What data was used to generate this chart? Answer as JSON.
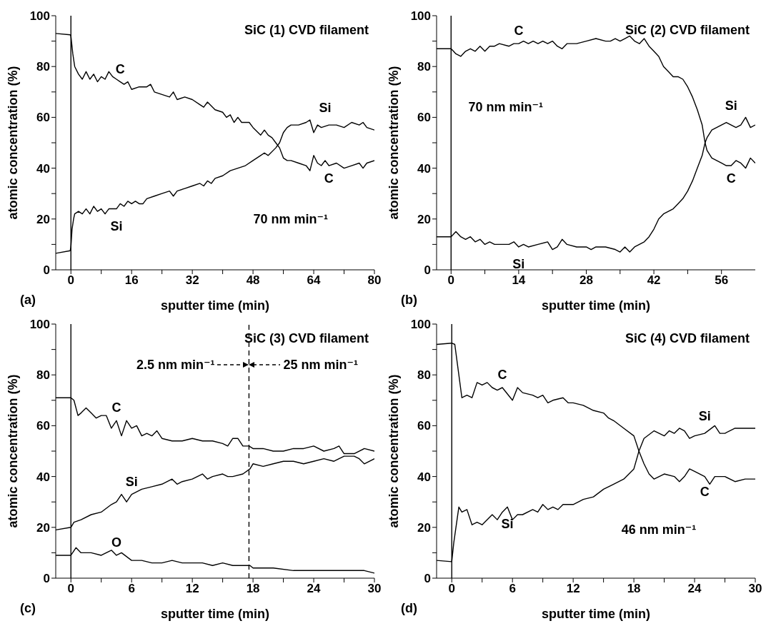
{
  "chart_data": [
    {
      "type": "line",
      "title": "SiC (1) CVD filament",
      "xlabel": "sputter time (min)",
      "ylabel": "atomic concentration (%)",
      "xlim": [
        -4,
        80
      ],
      "xticks": [
        0,
        {
          "value": 8,
          "label": null
        },
        16,
        {
          "value": 24,
          "label": null
        },
        32,
        {
          "value": 40,
          "label": null
        },
        48,
        {
          "value": 56,
          "label": null
        },
        64,
        {
          "value": 72,
          "label": null
        },
        80
      ],
      "ylim": [
        0,
        100
      ],
      "yticks": [
        0,
        {
          "value": 10,
          "label": null
        },
        20,
        {
          "value": 30,
          "label": null
        },
        40,
        {
          "value": 50,
          "label": null
        },
        60,
        {
          "value": 70,
          "label": null
        },
        80,
        {
          "value": 90,
          "label": null
        },
        100
      ],
      "marker": "none",
      "line_style": "solid",
      "ref_lines": [
        {
          "axis": "x",
          "value": 0,
          "color": "#000000",
          "line_style": "solid"
        }
      ],
      "annotations": [
        "(a)",
        "70 nm min⁻¹",
        {
          "text": "Si",
          "x": 67,
          "y": 57
        },
        {
          "text": "C",
          "x": 68,
          "y": 41
        }
      ],
      "series": [
        {
          "name": "C",
          "color": "#000000",
          "x": [
            -4,
            -0.2,
            0,
            0.5,
            1,
            2,
            3,
            4,
            5,
            6,
            7,
            8,
            9,
            10,
            11,
            12,
            13,
            14,
            15,
            16,
            18,
            20,
            21,
            22,
            24,
            26,
            27,
            28,
            30,
            32,
            34,
            35,
            36,
            38,
            40,
            41,
            42,
            43,
            44,
            45,
            47,
            48,
            50,
            51,
            52,
            53,
            54,
            55,
            56,
            57,
            58,
            60,
            62,
            63,
            64,
            65,
            66,
            67,
            68,
            70,
            72,
            74,
            76,
            77,
            78,
            80
          ],
          "values": [
            93,
            92.5,
            92,
            85,
            80,
            77,
            75,
            78,
            75,
            77,
            74,
            76,
            75,
            78,
            76,
            75,
            74,
            73,
            74,
            71,
            72,
            72,
            73,
            70,
            69,
            68,
            70,
            67,
            68,
            67,
            65,
            64,
            66,
            63,
            62,
            60,
            61,
            58,
            60,
            58,
            58,
            56,
            53,
            55,
            53,
            52,
            50,
            48,
            44,
            43,
            43,
            42,
            41,
            39,
            45,
            42,
            41,
            43,
            41,
            42,
            40,
            41,
            42,
            40,
            42,
            43
          ]
        },
        {
          "name": "Si",
          "color": "#000000",
          "x": [
            -4,
            -0.2,
            0,
            0.3,
            0.7,
            1,
            2,
            3,
            4,
            5,
            6,
            7,
            8,
            9,
            10,
            12,
            13,
            14,
            15,
            16,
            17,
            18,
            19,
            20,
            22,
            24,
            26,
            27,
            28,
            30,
            32,
            34,
            35,
            36,
            37,
            38,
            40,
            42,
            44,
            46,
            48,
            50,
            51,
            52,
            54,
            55,
            56,
            57,
            58,
            60,
            62,
            63,
            64,
            65,
            66,
            68,
            70,
            72,
            74,
            76,
            77,
            78,
            80
          ],
          "values": [
            6.5,
            7.5,
            9,
            16,
            20,
            22,
            23,
            22,
            24,
            22,
            25,
            23,
            24,
            22,
            24,
            24,
            26,
            25,
            27,
            26,
            27,
            26,
            26,
            28,
            29,
            30,
            31,
            29,
            31,
            32,
            33,
            34,
            33,
            35,
            34,
            36,
            37,
            39,
            40,
            41,
            43,
            45,
            46,
            45,
            48,
            50,
            54,
            56,
            57,
            57,
            58,
            59,
            54,
            57,
            56,
            57,
            57,
            56,
            58,
            57,
            58,
            56,
            55
          ]
        }
      ]
    },
    {
      "type": "line",
      "title": "SiC (2) CVD filament",
      "xlabel": "sputter time (min)",
      "ylabel": "atomic concentration (%)",
      "xlim": [
        -3,
        63
      ],
      "xticks": [
        0,
        {
          "value": 7,
          "label": null
        },
        14,
        {
          "value": 21,
          "label": null
        },
        28,
        {
          "value": 35,
          "label": null
        },
        42,
        {
          "value": 49,
          "label": null
        },
        56
      ],
      "ylim": [
        0,
        100
      ],
      "yticks": [
        0,
        {
          "value": 10,
          "label": null
        },
        20,
        {
          "value": 30,
          "label": null
        },
        40,
        {
          "value": 50,
          "label": null
        },
        60,
        {
          "value": 70,
          "label": null
        },
        80,
        {
          "value": 90,
          "label": null
        },
        100
      ],
      "marker": "none",
      "line_style": "solid",
      "ref_lines": [
        {
          "axis": "x",
          "value": 0,
          "color": "#000000",
          "line_style": "solid"
        }
      ],
      "annotations": [
        "(b)",
        "70 nm min⁻¹",
        {
          "text": "Si",
          "x": 58,
          "y": 58
        },
        {
          "text": "C",
          "x": 58,
          "y": 41
        }
      ],
      "series": [
        {
          "name": "C",
          "color": "#000000",
          "x": [
            -3,
            0,
            0.5,
            1,
            2,
            3,
            4,
            5,
            6,
            7,
            8,
            9,
            10,
            12,
            13,
            14,
            15,
            16,
            17,
            18,
            19,
            20,
            21,
            22,
            23,
            24,
            26,
            28,
            30,
            32,
            33,
            34,
            35,
            36,
            37,
            38,
            39,
            40,
            41,
            42,
            43,
            44,
            45,
            46,
            47,
            48,
            49,
            50,
            51,
            52,
            52.6,
            53,
            54,
            55,
            56,
            57,
            58,
            59,
            60,
            61,
            62,
            63
          ],
          "values": [
            87,
            87,
            86,
            85,
            84,
            86,
            87,
            86,
            88,
            86,
            88,
            88,
            89,
            88,
            89,
            89,
            90,
            89,
            90,
            89,
            90,
            89,
            90,
            88,
            87,
            89,
            89,
            90,
            91,
            90,
            90,
            91,
            90,
            91,
            92,
            90,
            89,
            91,
            88,
            86,
            84,
            80,
            78,
            76,
            76,
            75,
            72,
            68,
            63,
            57,
            50,
            47,
            44,
            43,
            42,
            41,
            41,
            43,
            42,
            40,
            44,
            42
          ]
        },
        {
          "name": "Si",
          "color": "#000000",
          "x": [
            -3,
            0,
            1,
            2,
            3,
            4,
            5,
            6,
            7,
            8,
            9,
            10,
            12,
            13,
            14,
            15,
            16,
            18,
            20,
            21,
            22,
            23,
            24,
            26,
            28,
            29,
            30,
            32,
            34,
            35,
            36,
            37,
            38,
            39,
            40,
            41,
            42,
            43,
            44,
            45,
            46,
            47,
            48,
            49,
            50,
            51,
            52,
            52.6,
            53,
            54,
            55,
            56,
            57,
            58,
            59,
            60,
            61,
            62,
            63
          ],
          "values": [
            13,
            13,
            15,
            13,
            12,
            13,
            11,
            12,
            10,
            11,
            10,
            10,
            10,
            11,
            9,
            10,
            9,
            10,
            11,
            8,
            9,
            12,
            10,
            9,
            9,
            8,
            9,
            9,
            8,
            7,
            9,
            7,
            9,
            10,
            11,
            13,
            16,
            20,
            22,
            23,
            24,
            26,
            28,
            31,
            35,
            40,
            45,
            50,
            52,
            55,
            56,
            57,
            58,
            57,
            56,
            57,
            60,
            56,
            57
          ]
        }
      ]
    },
    {
      "type": "line",
      "title": "SiC (3) CVD filament",
      "xlabel": "sputter time  (min)",
      "ylabel": "atomic concentration (%)",
      "xlim": [
        -1.5,
        30
      ],
      "xticks": [
        0,
        {
          "value": 3,
          "label": null
        },
        6,
        {
          "value": 9,
          "label": null
        },
        12,
        {
          "value": 15,
          "label": null
        },
        18,
        {
          "value": 21,
          "label": null
        },
        24,
        {
          "value": 27,
          "label": null
        },
        30
      ],
      "ylim": [
        0,
        100
      ],
      "yticks": [
        0,
        {
          "value": 10,
          "label": null
        },
        20,
        {
          "value": 30,
          "label": null
        },
        40,
        {
          "value": 50,
          "label": null
        },
        60,
        {
          "value": 70,
          "label": null
        },
        80,
        {
          "value": 90,
          "label": null
        },
        100
      ],
      "marker": "none",
      "line_style": "solid",
      "ref_lines": [
        {
          "axis": "x",
          "value": 0,
          "color": "#000000",
          "line_style": "solid"
        },
        {
          "axis": "x",
          "value": 17.6,
          "color": "#000000",
          "line_style": "dashed"
        }
      ],
      "annotations": [
        "(c)",
        "2.5 nm min⁻¹",
        "25 nm min⁻¹"
      ],
      "series": [
        {
          "name": "C",
          "color": "#000000",
          "x": [
            -1.5,
            0,
            0.3,
            0.7,
            1,
            1.5,
            2,
            2.5,
            3,
            3.5,
            4,
            4.5,
            5,
            5.5,
            6,
            6.5,
            7,
            7.5,
            8,
            8.5,
            9,
            10,
            11,
            12,
            13,
            14,
            15,
            15.5,
            16,
            16.5,
            17,
            17.6,
            18,
            19,
            20,
            21,
            22,
            23,
            24,
            25,
            26,
            26.5,
            27,
            28,
            29,
            30
          ],
          "values": [
            71,
            71,
            70,
            64,
            65,
            67,
            65,
            63,
            64,
            64,
            59,
            62,
            56,
            62,
            59,
            60,
            56,
            57,
            56,
            58,
            55,
            54,
            54,
            55,
            54,
            54,
            53,
            52,
            55,
            55,
            52,
            52,
            51,
            51,
            50,
            50,
            51,
            51,
            52,
            50,
            51,
            52,
            49,
            49,
            51,
            50
          ]
        },
        {
          "name": "Si",
          "color": "#000000",
          "x": [
            -1.5,
            0,
            0.3,
            1,
            2,
            3,
            4,
            4.5,
            5,
            5.5,
            6,
            7,
            8,
            9,
            10,
            10.5,
            11,
            12,
            13,
            13.5,
            14,
            15,
            15.5,
            16,
            17,
            17.7,
            18,
            19,
            20,
            21,
            22,
            23,
            24,
            25,
            26,
            27,
            28,
            28.5,
            29,
            30
          ],
          "values": [
            19,
            20,
            22,
            23,
            25,
            26,
            29,
            30,
            33,
            30,
            33,
            35,
            36,
            37,
            39,
            37,
            38,
            39,
            41,
            39,
            40,
            41,
            40,
            40,
            41,
            43,
            45,
            44,
            45,
            46,
            46,
            45,
            46,
            47,
            46,
            48,
            48,
            47,
            45,
            47
          ]
        },
        {
          "name": "O",
          "color": "#000000",
          "x": [
            -1.5,
            0,
            0.5,
            1,
            2,
            3,
            4,
            4.5,
            5,
            6,
            7,
            8,
            9,
            10,
            11,
            12,
            13,
            14,
            15,
            16,
            17,
            17.7,
            18,
            20,
            22,
            24,
            26,
            28,
            29,
            30
          ],
          "values": [
            9,
            9,
            12,
            10,
            10,
            9,
            11,
            9,
            10,
            7,
            7,
            6,
            6,
            7,
            6,
            6,
            6,
            5,
            6,
            5,
            5,
            5,
            4,
            4,
            3,
            3,
            3,
            3,
            3,
            2
          ]
        }
      ]
    },
    {
      "type": "line",
      "title": "SiC (4) CVD filament",
      "xlabel": "sputter time (min)",
      "ylabel": "atomic concentration (%)",
      "xlim": [
        -1.5,
        30
      ],
      "xticks": [
        0,
        {
          "value": 3,
          "label": null
        },
        6,
        {
          "value": 9,
          "label": null
        },
        12,
        {
          "value": 15,
          "label": null
        },
        18,
        {
          "value": 21,
          "label": null
        },
        24,
        {
          "value": 27,
          "label": null
        },
        30
      ],
      "ylim": [
        0,
        100
      ],
      "yticks": [
        0,
        {
          "value": 10,
          "label": null
        },
        20,
        {
          "value": 30,
          "label": null
        },
        40,
        {
          "value": 50,
          "label": null
        },
        60,
        {
          "value": 70,
          "label": null
        },
        80,
        {
          "value": 90,
          "label": null
        },
        100
      ],
      "marker": "none",
      "line_style": "solid",
      "ref_lines": [
        {
          "axis": "x",
          "value": 0,
          "color": "#000000",
          "line_style": "solid"
        }
      ],
      "annotations": [
        "(d)",
        "46 nm min⁻¹",
        {
          "text": "Si",
          "x": 25,
          "y": 57
        },
        {
          "text": "C",
          "x": 25,
          "y": 39
        }
      ],
      "series": [
        {
          "name": "C",
          "color": "#000000",
          "x": [
            -1.5,
            0,
            0.3,
            1,
            1.5,
            2,
            2.5,
            3,
            3.5,
            4,
            4.5,
            5,
            6,
            6.5,
            7,
            8,
            8.5,
            9,
            9.5,
            10,
            11,
            11.5,
            12,
            13,
            14,
            15,
            15.5,
            16,
            17,
            18,
            18.5,
            19,
            19.5,
            20,
            21,
            22,
            22.5,
            23,
            23.5,
            24,
            25,
            25.5,
            26,
            27,
            28,
            29,
            30
          ],
          "values": [
            92,
            92.5,
            92,
            71,
            72,
            71,
            77,
            76,
            77,
            75,
            74,
            75,
            70,
            75,
            73,
            72,
            71,
            72,
            69,
            70,
            71,
            69,
            69,
            68,
            66,
            65,
            63,
            62,
            59,
            56,
            50,
            45,
            41,
            39,
            41,
            40,
            38,
            40,
            43,
            42,
            40,
            37,
            40,
            40,
            38,
            39,
            39
          ]
        },
        {
          "name": "Si",
          "color": "#000000",
          "x": [
            -1.5,
            0,
            0.2,
            0.7,
            1,
            1.5,
            2,
            2.5,
            3,
            4,
            4.5,
            5,
            5.5,
            6,
            6.5,
            7,
            8,
            8.5,
            9,
            9.5,
            10,
            10.5,
            11,
            12,
            13,
            14,
            15,
            15.5,
            16,
            17,
            18,
            18.5,
            19,
            20,
            21,
            21.5,
            22,
            22.5,
            23,
            23.5,
            24,
            25,
            26,
            26.5,
            27,
            28,
            29,
            30
          ],
          "values": [
            7,
            6.5,
            14,
            28,
            26,
            27,
            21,
            22,
            21,
            25,
            23,
            26,
            28,
            23,
            25,
            25,
            27,
            26,
            29,
            27,
            28,
            27,
            29,
            29,
            31,
            32,
            35,
            36,
            37,
            39,
            43,
            50,
            55,
            58,
            56,
            58,
            57,
            59,
            58,
            55,
            56,
            57,
            60,
            57,
            57,
            59,
            59,
            59
          ]
        }
      ]
    }
  ]
}
